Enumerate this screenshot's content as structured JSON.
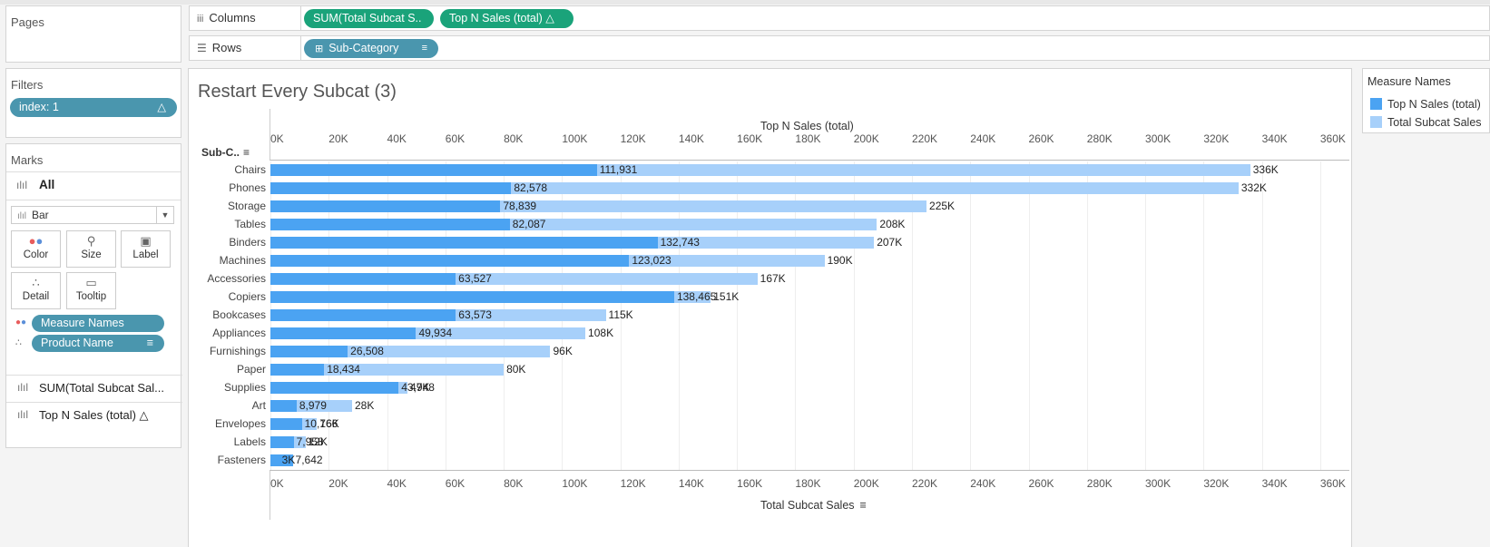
{
  "pages": {
    "title": "Pages"
  },
  "shelves": {
    "columns_label": "Columns",
    "rows_label": "Rows",
    "columns_pills": [
      "SUM(Total Subcat S..",
      "Top N Sales (total)  △"
    ],
    "rows_pills": [
      "Sub-Category"
    ]
  },
  "filters": {
    "title": "Filters",
    "pill": "index: 1",
    "pill_icon": "△"
  },
  "marks": {
    "title": "Marks",
    "all_label": "All",
    "mark_type": "Bar",
    "buttons": [
      "Color",
      "Size",
      "Label",
      "Detail",
      "Tooltip"
    ],
    "pills": [
      "Measure Names",
      "Product Name"
    ],
    "summary": [
      "SUM(Total Subcat Sal...",
      "Top N Sales (total) △"
    ]
  },
  "sheet": {
    "title": "Restart Every Subcat (3)"
  },
  "legend": {
    "title": "Measure Names",
    "items": [
      {
        "label": "Top N Sales (total)",
        "color": "#4ba3f2"
      },
      {
        "label": "Total Subcat Sales",
        "color": "#a7d0fa"
      }
    ]
  },
  "chart_data": {
    "type": "bar",
    "orientation": "horizontal",
    "row_header": "Sub-C..",
    "top_axis_title": "Top N Sales (total)",
    "bottom_axis_title": "Total Subcat Sales",
    "xlim": [
      0,
      370000
    ],
    "ticks": [
      "0K",
      "20K",
      "40K",
      "60K",
      "80K",
      "100K",
      "120K",
      "140K",
      "160K",
      "180K",
      "200K",
      "220K",
      "240K",
      "260K",
      "280K",
      "300K",
      "320K",
      "340K",
      "360K"
    ],
    "categories": [
      "Chairs",
      "Phones",
      "Storage",
      "Tables",
      "Binders",
      "Machines",
      "Accessories",
      "Copiers",
      "Bookcases",
      "Appliances",
      "Furnishings",
      "Paper",
      "Supplies",
      "Art",
      "Envelopes",
      "Labels",
      "Fasteners"
    ],
    "series": [
      {
        "name": "Total Subcat Sales",
        "color": "#a7d0fa",
        "values": [
          336000,
          332000,
          225000,
          208000,
          207000,
          190000,
          167000,
          151000,
          115000,
          108000,
          96000,
          80000,
          47000,
          28000,
          16000,
          12000,
          3000
        ],
        "labels": [
          "336K",
          "332K",
          "225K",
          "208K",
          "207K",
          "190K",
          "167K",
          "151K",
          "115K",
          "108K",
          "96K",
          "80K",
          "47K",
          "28K",
          "16K",
          "12K",
          "3K"
        ]
      },
      {
        "name": "Top N Sales (total)",
        "color": "#4ba3f2",
        "values": [
          111931,
          82578,
          78839,
          82087,
          132743,
          123023,
          63527,
          138465,
          63573,
          49934,
          26508,
          18434,
          43948,
          8979,
          10766,
          7958,
          7642
        ],
        "labels": [
          "111,931",
          "82,578",
          "78,839",
          "82,087",
          "132,743",
          "123,023",
          "63,527",
          "138,465",
          "63,573",
          "49,934",
          "26,508",
          "18,434",
          "43,948",
          "8,979",
          "10,766",
          "7,958",
          "7,642"
        ]
      }
    ]
  }
}
